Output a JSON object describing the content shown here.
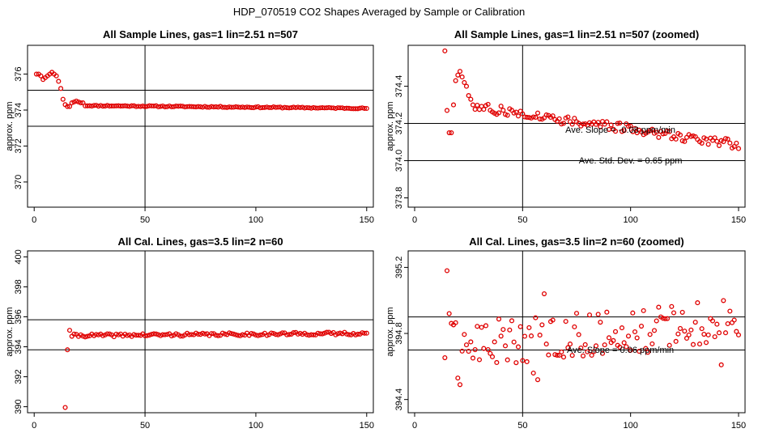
{
  "figure": {
    "title": "HDP_070519  CO2 Shapes Averaged by Sample or Calibration",
    "point_color": "#e00000"
  },
  "chart_data": [
    {
      "type": "scatter",
      "title": "All Sample Lines, gas=1 lin=2.51 n=507",
      "xlabel": "",
      "ylabel": "approx. ppm",
      "xlim": [
        -3,
        153
      ],
      "ylim": [
        368.6,
        377.6
      ],
      "xticks": [
        0,
        50,
        100,
        150
      ],
      "yticks": [
        370,
        372,
        374,
        376
      ],
      "hlines": [
        375.1,
        373.1
      ],
      "vline": 50,
      "annotations": [],
      "series": [
        {
          "x": "1..150",
          "values": []
        }
      ]
    },
    {
      "type": "scatter",
      "title": "All Sample Lines, gas=1 lin=2.51 n=507 (zoomed)",
      "xlabel": "",
      "ylabel": "approx. ppm",
      "xlim": [
        -3,
        153
      ],
      "ylim": [
        373.75,
        374.62
      ],
      "xticks": [
        0,
        50,
        100,
        150
      ],
      "yticks": [
        373.8,
        374.0,
        374.2,
        374.4
      ],
      "hlines": [
        374.2,
        374.0
      ],
      "vline": 50,
      "annotations": [
        "Ave. Slope =  -0.08  ppm/min",
        "Ave. Std. Dev. =  0.65  ppm"
      ],
      "series": [
        {
          "x": "14..150",
          "values": []
        }
      ]
    },
    {
      "type": "scatter",
      "title": "All Cal. Lines, gas=3.5 lin=2 n=60",
      "xlabel": "",
      "ylabel": "approx. ppm",
      "xlim": [
        -3,
        153
      ],
      "ylim": [
        389.6,
        400.4
      ],
      "xticks": [
        0,
        50,
        100,
        150
      ],
      "yticks": [
        390,
        392,
        394,
        396,
        398,
        400
      ],
      "hlines": [
        395.8,
        393.8
      ],
      "vline": 50,
      "annotations": [],
      "series": [
        {
          "x": "14..150",
          "values": []
        }
      ]
    },
    {
      "type": "scatter",
      "title": "All Cal. Lines, gas=3.5 lin=2 n=60 (zoomed)",
      "xlabel": "",
      "ylabel": "approx. ppm",
      "xlim": [
        -3,
        153
      ],
      "ylim": [
        394.32,
        395.3
      ],
      "xticks": [
        0,
        50,
        100,
        150
      ],
      "yticks": [
        394.4,
        394.8,
        395.2
      ],
      "hlines": [
        394.9,
        394.7
      ],
      "vline": 50,
      "annotations": [
        "Ave. Slope =  0.06  ppm/min"
      ],
      "series": [
        {
          "x": "14..150",
          "values": []
        }
      ]
    }
  ]
}
